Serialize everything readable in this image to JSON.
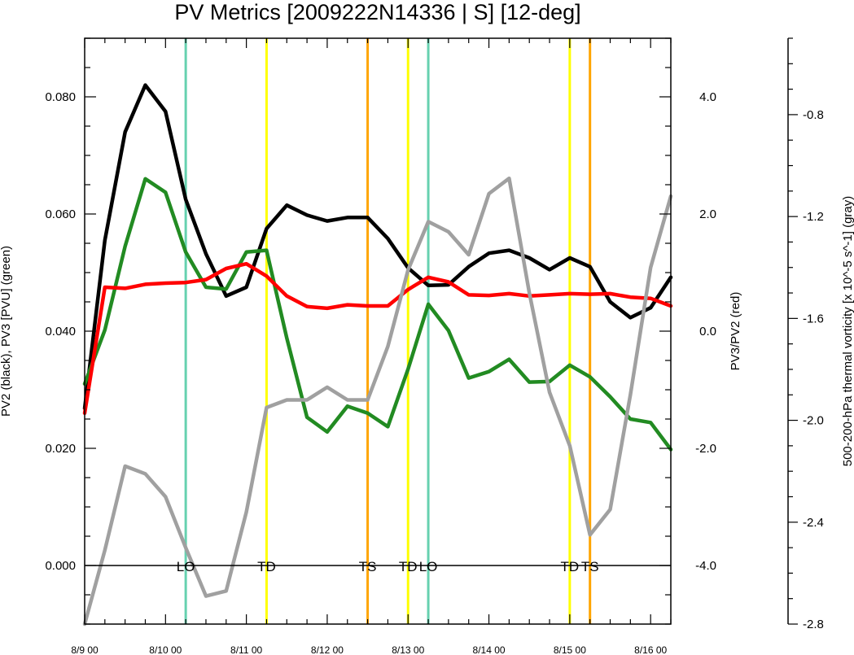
{
  "chart_data": {
    "type": "line",
    "title": "PV Metrics [2009222N14336 | S] [12-deg]",
    "x_tick_labels": [
      "8/9 00",
      "8/10 00",
      "8/11 00",
      "8/12 00",
      "8/13 00",
      "8/14 00",
      "8/15 00",
      "8/16 00"
    ],
    "x_range_steps": [
      0,
      29
    ],
    "x_step_hours": 6,
    "left_axis": {
      "label": "PV2 (black), PV3 [PVU] (green)",
      "range": [
        -0.01,
        0.09
      ],
      "tick_values": [
        0.0,
        0.02,
        0.04,
        0.06,
        0.08
      ],
      "tick_labels": [
        "0.000",
        "0.020",
        "0.040",
        "0.060",
        "0.080"
      ]
    },
    "right_axis": {
      "label": "PV3/PV2 (red)",
      "range": [
        -5.0,
        5.0
      ],
      "tick_values": [
        -4.0,
        -2.0,
        0.0,
        2.0,
        4.0
      ],
      "tick_labels": [
        "-4.0",
        "-2.0",
        "0.0",
        "2.0",
        "4.0"
      ]
    },
    "far_right_axis": {
      "label": "500-200-hPa thermal vorticity [x 10^-5 s^-1] (gray)",
      "range": [
        -2.8,
        -0.5
      ],
      "tick_values": [
        -0.8,
        -1.2,
        -1.6,
        -2.0,
        -2.4,
        -2.8
      ],
      "tick_labels": [
        "-0.8",
        "-1.2",
        "-1.6",
        "-2.0",
        "-2.4",
        "-2.8"
      ]
    },
    "series": [
      {
        "color": "#000000",
        "axis": "left",
        "values": [
          0.0268,
          0.0555,
          0.074,
          0.082,
          0.0775,
          0.0625,
          0.0532,
          0.046,
          0.0475,
          0.0575,
          0.0615,
          0.0598,
          0.0588,
          0.0594,
          0.0594,
          0.0558,
          0.0508,
          0.0478,
          0.0479,
          0.051,
          0.0533,
          0.0538,
          0.0525,
          0.0505,
          0.0525,
          0.051,
          0.045,
          0.0423,
          0.044,
          0.0492
        ]
      },
      {
        "color": "#228b22",
        "axis": "left",
        "values": [
          0.031,
          0.0402,
          0.0545,
          0.066,
          0.0637,
          0.0535,
          0.0475,
          0.0472,
          0.0535,
          0.0538,
          0.0388,
          0.0253,
          0.0228,
          0.0272,
          0.026,
          0.0237,
          0.0335,
          0.0446,
          0.0401,
          0.032,
          0.0331,
          0.0352,
          0.0313,
          0.0314,
          0.0342,
          0.0322,
          0.0288,
          0.025,
          0.0244,
          0.0198
        ]
      },
      {
        "color": "#ff0000",
        "axis": "right",
        "values": [
          -1.4,
          0.75,
          0.73,
          0.8,
          0.82,
          0.83,
          0.88,
          1.07,
          1.15,
          0.94,
          0.6,
          0.42,
          0.39,
          0.45,
          0.43,
          0.43,
          0.71,
          0.92,
          0.84,
          0.62,
          0.61,
          0.64,
          0.6,
          0.62,
          0.64,
          0.63,
          0.64,
          0.58,
          0.56,
          0.43
        ]
      },
      {
        "color": "#a0a0a0",
        "axis": "far_right",
        "values": [
          -2.8,
          -2.51,
          -2.18,
          -2.21,
          -2.3,
          -2.5,
          -2.69,
          -2.67,
          -2.36,
          -1.95,
          -1.92,
          -1.92,
          -1.87,
          -1.92,
          -1.92,
          -1.71,
          -1.41,
          -1.22,
          -1.26,
          -1.35,
          -1.11,
          -1.05,
          -1.5,
          -1.89,
          -2.1,
          -2.45,
          -2.35,
          -1.9,
          -1.4,
          -1.12
        ]
      }
    ],
    "vertical_markers": [
      {
        "label": "LO",
        "color": "#66d1b0",
        "x_step": 5
      },
      {
        "label": "TD",
        "color": "#ffff00",
        "x_step": 9
      },
      {
        "label": "TS",
        "color": "#ffa500",
        "x_step": 14
      },
      {
        "label": "TD",
        "color": "#ffff00",
        "x_step": 16
      },
      {
        "label": "LO",
        "color": "#66d1b0",
        "x_step": 17
      },
      {
        "label": "TD",
        "color": "#ffff00",
        "x_step": 24
      },
      {
        "label": "TS",
        "color": "#ffa500",
        "x_step": 25
      }
    ],
    "zero_line": 0.0,
    "grid": false,
    "legend": "none"
  }
}
